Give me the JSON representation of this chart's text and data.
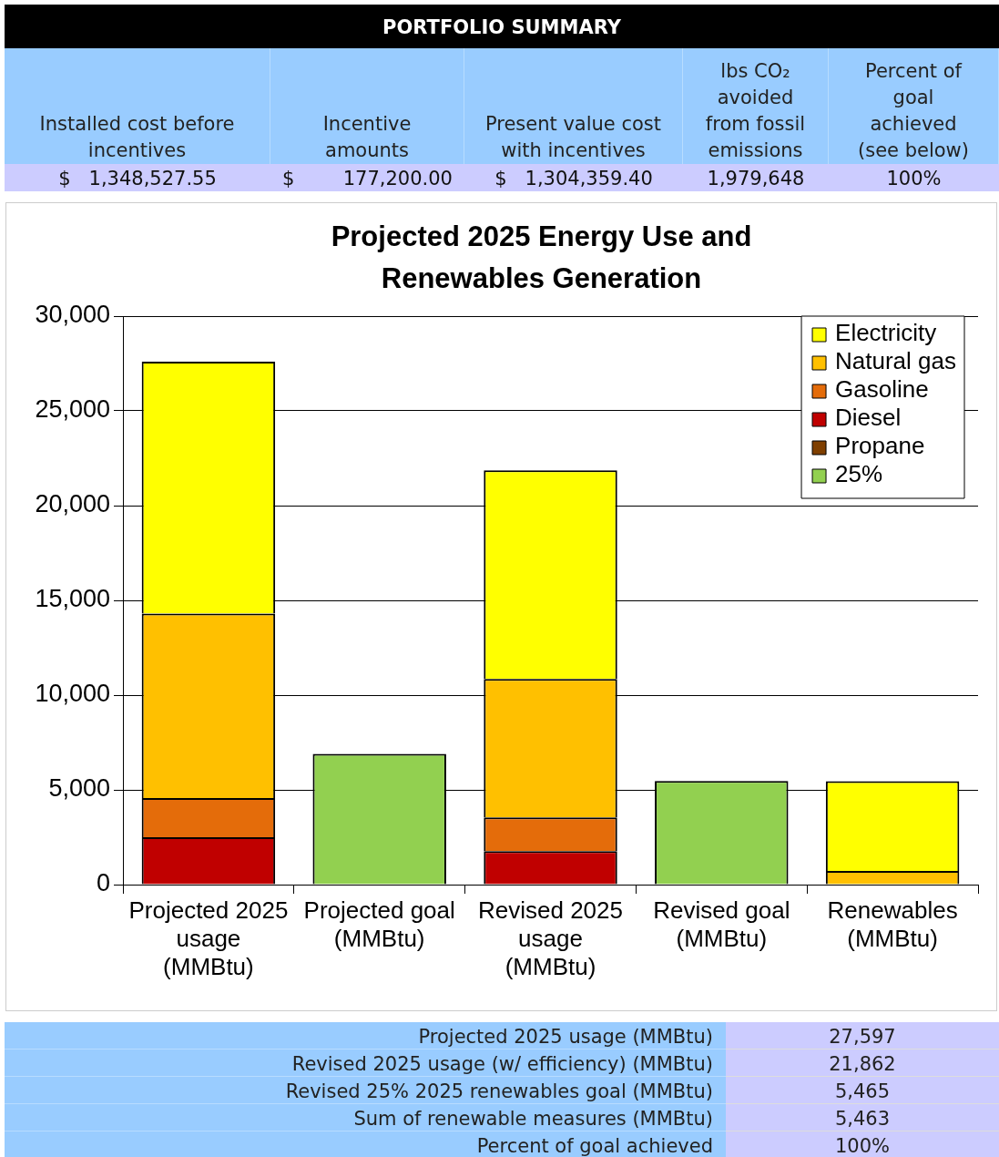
{
  "chart_data": {
    "type": "bar",
    "title": "Projected 2025 Energy Use and Renewables Generation",
    "categories": [
      "Projected 2025 usage (MMBtu)",
      "Projected goal (MMBtu)",
      "Revised 2025 usage (MMBtu)",
      "Revised goal (MMBtu)",
      "Renewables (MMBtu)"
    ],
    "stacked": true,
    "series": [
      {
        "name": "25%",
        "color": "#92d050",
        "values": [
          0,
          6900,
          0,
          5470,
          0
        ]
      },
      {
        "name": "Propane",
        "color": "#7f3f00",
        "values": [
          0,
          0,
          0,
          0,
          0
        ]
      },
      {
        "name": "Diesel",
        "color": "#c00000",
        "values": [
          2500,
          0,
          1770,
          0,
          0
        ]
      },
      {
        "name": "Gasoline",
        "color": "#e46c0a",
        "values": [
          2070,
          0,
          1780,
          0,
          0
        ]
      },
      {
        "name": "Natural gas",
        "color": "#ffc000",
        "values": [
          9730,
          0,
          7300,
          0,
          720
        ]
      },
      {
        "name": "Electricity",
        "color": "#ffff00",
        "values": [
          13300,
          0,
          11010,
          0,
          4740
        ]
      }
    ],
    "ylim": [
      0,
      30000
    ],
    "yticks": [
      0,
      {
        "value": 5000,
        "label": "5,000"
      },
      {
        "value": 10000,
        "label": "10,000"
      },
      {
        "value": 15000,
        "label": "15,000"
      },
      {
        "value": 20000,
        "label": "20,000"
      },
      {
        "value": 25000,
        "label": "25,000"
      },
      {
        "value": 30000,
        "label": "30,000"
      }
    ],
    "grid": "y",
    "legend": "top right",
    "annotations": [
      "PORTFOLIO SUMMARY",
      "Installed cost before incentives",
      "Incentive amounts",
      "Present value cost with incentives",
      "lbs CO₂ avoided from fossil emissions",
      "Percent of goal achieved (see below)",
      "$   1,348,527.55",
      "$        177,200.00",
      "$   1,304,359.40",
      "1,979,648",
      "100%",
      "Projected 2025 usage (MMBtu)",
      "27,597",
      "Revised 2025 usage (w/ efficiency) (MMBtu)",
      "21,862",
      "Revised 25% 2025 renewables goal (MMBtu)",
      "5,465",
      "Sum of renewable measures (MMBtu)",
      "5,463",
      "Percent of goal achieved",
      "100%"
    ]
  }
}
